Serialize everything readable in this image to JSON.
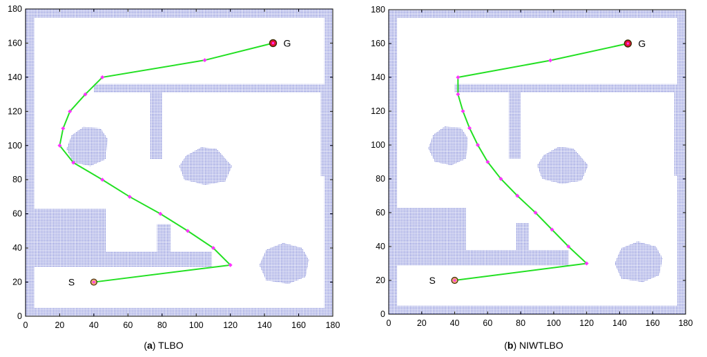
{
  "chart_data": [
    {
      "type": "line",
      "caption_letter": "a",
      "caption_name": "TLBO",
      "xlim": [
        0,
        180
      ],
      "ylim": [
        0,
        180
      ],
      "x_ticks": [
        0,
        20,
        40,
        60,
        80,
        100,
        120,
        140,
        160,
        180
      ],
      "y_ticks": [
        0,
        20,
        40,
        60,
        80,
        100,
        120,
        140,
        160,
        180
      ],
      "grid": false,
      "start": {
        "label": "S",
        "x": 40,
        "y": 20
      },
      "goal": {
        "label": "G",
        "x": 145,
        "y": 160
      },
      "series": [
        {
          "values": [
            [
              40,
              20
            ],
            [
              120,
              30
            ],
            [
              110,
              40
            ],
            [
              95,
              50
            ],
            [
              79,
              60
            ],
            [
              61,
              70
            ],
            [
              45,
              80
            ],
            [
              28,
              90
            ],
            [
              20,
              100
            ],
            [
              22,
              110
            ],
            [
              26,
              120
            ],
            [
              35,
              130
            ],
            [
              45,
              140
            ],
            [
              105,
              150
            ],
            [
              145,
              160
            ]
          ]
        }
      ],
      "obstacles": {
        "border_thickness": 5,
        "rects": [
          [
            40,
            131,
            173,
            136
          ],
          [
            73,
            92,
            80,
            131
          ],
          [
            173,
            82,
            180,
            136
          ],
          [
            5,
            29,
            47,
            63
          ],
          [
            47,
            29,
            109,
            38
          ],
          [
            77,
            38,
            85,
            54
          ]
        ],
        "blobs": [
          [
            [
              24,
              98
            ],
            [
              27,
              106
            ],
            [
              34,
              111
            ],
            [
              44,
              110
            ],
            [
              48,
              104
            ],
            [
              47,
              92
            ],
            [
              38,
              88
            ],
            [
              28,
              90
            ]
          ],
          [
            [
              90,
              88
            ],
            [
              94,
              94
            ],
            [
              103,
              99
            ],
            [
              112,
              98
            ],
            [
              121,
              88
            ],
            [
              117,
              79
            ],
            [
              105,
              77
            ],
            [
              93,
              80
            ]
          ],
          [
            [
              137,
              30
            ],
            [
              141,
              39
            ],
            [
              151,
              43
            ],
            [
              162,
              40
            ],
            [
              166,
              33
            ],
            [
              164,
              23
            ],
            [
              154,
              19
            ],
            [
              141,
              21
            ]
          ]
        ]
      }
    },
    {
      "type": "line",
      "caption_letter": "b",
      "caption_name": "NIWTLBO",
      "xlim": [
        0,
        180
      ],
      "ylim": [
        0,
        180
      ],
      "x_ticks": [
        0,
        20,
        40,
        60,
        80,
        100,
        120,
        140,
        160,
        180
      ],
      "y_ticks": [
        0,
        20,
        40,
        60,
        80,
        100,
        120,
        140,
        160,
        180
      ],
      "grid": false,
      "start": {
        "label": "S",
        "x": 40,
        "y": 20
      },
      "goal": {
        "label": "G",
        "x": 145,
        "y": 160
      },
      "series": [
        {
          "values": [
            [
              40,
              20
            ],
            [
              120,
              30
            ],
            [
              109,
              40
            ],
            [
              99,
              50
            ],
            [
              89,
              60
            ],
            [
              78,
              70
            ],
            [
              68,
              80
            ],
            [
              60,
              90
            ],
            [
              54,
              100
            ],
            [
              49,
              110
            ],
            [
              45,
              120
            ],
            [
              42,
              130
            ],
            [
              42,
              140
            ],
            [
              98,
              150
            ],
            [
              145,
              160
            ]
          ]
        }
      ],
      "obstacles": {
        "border_thickness": 5,
        "rects": [
          [
            40,
            131,
            173,
            136
          ],
          [
            73,
            92,
            80,
            131
          ],
          [
            173,
            82,
            180,
            136
          ],
          [
            5,
            29,
            47,
            63
          ],
          [
            47,
            29,
            109,
            38
          ],
          [
            77,
            38,
            85,
            54
          ]
        ],
        "blobs": [
          [
            [
              24,
              98
            ],
            [
              27,
              106
            ],
            [
              34,
              111
            ],
            [
              44,
              110
            ],
            [
              48,
              104
            ],
            [
              47,
              92
            ],
            [
              38,
              88
            ],
            [
              28,
              90
            ]
          ],
          [
            [
              90,
              88
            ],
            [
              94,
              94
            ],
            [
              103,
              99
            ],
            [
              112,
              98
            ],
            [
              121,
              88
            ],
            [
              117,
              79
            ],
            [
              105,
              77
            ],
            [
              93,
              80
            ]
          ],
          [
            [
              137,
              30
            ],
            [
              141,
              39
            ],
            [
              151,
              43
            ],
            [
              162,
              40
            ],
            [
              166,
              33
            ],
            [
              164,
              23
            ],
            [
              154,
              19
            ],
            [
              141,
              21
            ]
          ]
        ]
      }
    }
  ],
  "colors": {
    "obstacle": "#4a55c8",
    "path": "#22e022",
    "waypoint": "#ff33ff",
    "endpoint_fill": "#e8123c",
    "endpoint_ring": "#3a2a00",
    "axis": "#000000"
  }
}
